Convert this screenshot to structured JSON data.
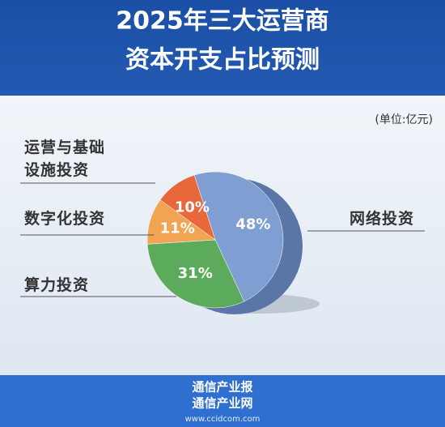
{
  "chart_data": {
    "type": "pie",
    "title": [
      "2025年三大运营商",
      "资本开支占比预测"
    ],
    "unit": "(单位:亿元)",
    "categories": [
      "网络投资",
      "算力投资",
      "数字化投资",
      "运营与基础设施投资"
    ],
    "values": [
      48,
      31,
      11,
      10
    ],
    "value_labels": [
      "48%",
      "31%",
      "11%",
      "10%"
    ],
    "colors": [
      "#7f9fd2",
      "#5caa5c",
      "#f2a455",
      "#e8683c"
    ]
  },
  "footer": {
    "lines": [
      "通信产业报",
      "通信产业网"
    ],
    "url": "www.ccidcom.com"
  }
}
